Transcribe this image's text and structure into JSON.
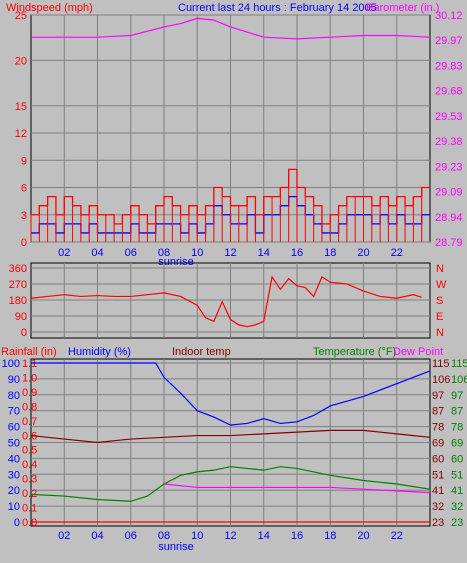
{
  "header": {
    "windspeed_label": "Windspeed (mph)",
    "period_label": "Current last 24 hours : February 14 2005",
    "barometer_label": "Barometer (in.)"
  },
  "colors": {
    "background": "#c0c0c0",
    "wind_red": "#ff0000",
    "wind_blue": "#0000ff",
    "barometer": "#ff00ff",
    "direction": "#ff0000",
    "humidity": "#0000ff",
    "indoor_temp": "#800000",
    "temperature": "#008000",
    "dew_point": "#ff00ff",
    "rainfall": "#ff0000"
  },
  "x_axis": {
    "ticks": [
      "02",
      "04",
      "06",
      "08",
      "10",
      "12",
      "14",
      "16",
      "18",
      "20",
      "22"
    ],
    "sunrise_label": "sunrise"
  },
  "chart_data": [
    {
      "type": "line",
      "panel": "wind_barometer",
      "x_range": [
        0,
        24
      ],
      "y_left": {
        "label": "Windspeed (mph)",
        "ylim": [
          0,
          25
        ],
        "ticks": [
          "0",
          "3",
          "6",
          "9",
          "12",
          "15",
          "20",
          "25"
        ]
      },
      "y_right": {
        "label": "Barometer (in.)",
        "ylim": [
          28.79,
          30.12
        ],
        "ticks": [
          "28.79",
          "28.94",
          "29.09",
          "29.23",
          "29.38",
          "29.53",
          "29.68",
          "29.83",
          "29.97",
          "30.12"
        ]
      },
      "series": [
        {
          "kind": "gust",
          "hours": [
            0,
            0.5,
            1,
            1.5,
            2,
            2.5,
            3,
            3.5,
            4,
            4.5,
            5,
            5.5,
            6,
            6.5,
            7,
            7.5,
            8,
            8.5,
            9,
            9.5,
            10,
            10.5,
            11,
            11.5,
            12,
            12.5,
            13,
            13.5,
            14,
            14.5,
            15,
            15.5,
            16,
            16.5,
            17,
            17.5,
            18,
            18.5,
            19,
            19.5,
            20,
            20.5,
            21,
            21.5,
            22,
            22.5,
            23,
            23.5
          ],
          "values": [
            3,
            4,
            5,
            3,
            5,
            4,
            3,
            4,
            3,
            3,
            2,
            3,
            4,
            3,
            2,
            4,
            5,
            4,
            3,
            4,
            3,
            4,
            6,
            5,
            4,
            4,
            5,
            3,
            5,
            5,
            6,
            8,
            6,
            5,
            4,
            2,
            3,
            4,
            5,
            5,
            5,
            4,
            5,
            4,
            5,
            4,
            5,
            6
          ]
        },
        {
          "kind": "average",
          "hours": [
            0,
            0.5,
            1,
            1.5,
            2,
            2.5,
            3,
            3.5,
            4,
            4.5,
            5,
            5.5,
            6,
            6.5,
            7,
            7.5,
            8,
            8.5,
            9,
            9.5,
            10,
            10.5,
            11,
            11.5,
            12,
            12.5,
            13,
            13.5,
            14,
            14.5,
            15,
            15.5,
            16,
            16.5,
            17,
            17.5,
            18,
            18.5,
            19,
            19.5,
            20,
            20.5,
            21,
            21.5,
            22,
            22.5,
            23,
            23.5
          ],
          "values": [
            1,
            2,
            2,
            1,
            2,
            2,
            1,
            2,
            1,
            1,
            1,
            1,
            2,
            1,
            1,
            2,
            2,
            2,
            1,
            2,
            1,
            2,
            4,
            3,
            2,
            2,
            3,
            1,
            3,
            3,
            4,
            5,
            4,
            3,
            2,
            1,
            1,
            2,
            3,
            3,
            3,
            2,
            3,
            2,
            3,
            2,
            2,
            3
          ]
        },
        {
          "kind": "barometer",
          "hours": [
            0,
            2,
            4,
            6,
            8,
            9,
            10,
            11,
            12,
            13,
            14,
            16,
            18,
            20,
            22,
            24
          ],
          "values": [
            29.99,
            29.99,
            29.99,
            30.0,
            30.05,
            30.07,
            30.1,
            30.09,
            30.05,
            30.02,
            29.99,
            29.98,
            29.99,
            30.0,
            30.0,
            29.99
          ]
        }
      ]
    },
    {
      "type": "line",
      "panel": "wind_direction",
      "x_range": [
        0,
        24
      ],
      "y_left": {
        "ylim": [
          0,
          360
        ],
        "ticks": [
          "0",
          "90",
          "180",
          "270",
          "360"
        ]
      },
      "y_right": {
        "ticks": [
          "N",
          "W",
          "S",
          "E",
          "N"
        ]
      },
      "series": [
        {
          "kind": "direction_degrees",
          "hours": [
            0,
            1,
            2,
            3,
            4,
            5,
            6,
            7,
            8,
            9,
            10,
            10.5,
            11,
            11.5,
            12,
            12.5,
            13,
            13.5,
            14,
            14.5,
            15,
            15.5,
            16,
            16.5,
            17,
            17.5,
            18,
            19,
            20,
            21,
            22,
            23,
            23.5
          ],
          "values": [
            190,
            200,
            210,
            200,
            205,
            200,
            200,
            210,
            220,
            200,
            150,
            80,
            60,
            170,
            70,
            40,
            30,
            40,
            60,
            310,
            240,
            300,
            260,
            250,
            200,
            310,
            280,
            270,
            230,
            200,
            190,
            210,
            195
          ]
        }
      ]
    },
    {
      "type": "line",
      "panel": "humidity_temperature",
      "x_range": [
        0,
        24
      ],
      "labels": {
        "rainfall": "Rainfall (in)",
        "humidity": "Humidity (%)",
        "indoor_temp": "Indoor temp",
        "temperature": "Temperature (°F)",
        "dew_point": "Dew Point"
      },
      "y_left_rain": {
        "ylim": [
          0,
          1.1
        ],
        "ticks": [
          "0.0",
          "0.1",
          "0.2",
          "0.3",
          "0.4",
          "0.5",
          "0.6",
          "0.7",
          "0.8",
          "0.9",
          "1.0",
          "1.1"
        ]
      },
      "y_left_humidity": {
        "ylim": [
          0,
          100
        ],
        "ticks": [
          "0",
          "10",
          "20",
          "30",
          "40",
          "50",
          "60",
          "70",
          "80",
          "90",
          "100"
        ]
      },
      "y_right_inner": {
        "ticks": [
          "23",
          "32",
          "41",
          "51",
          "60",
          "69",
          "78",
          "87",
          "97",
          "106",
          "115"
        ]
      },
      "y_right_outer": {
        "ticks": [
          "23",
          "32",
          "41",
          "51",
          "60",
          "69",
          "78",
          "87",
          "97",
          "106",
          "115"
        ]
      },
      "y_right_range": [
        23,
        115
      ],
      "series": [
        {
          "name": "Humidity (%)",
          "hours": [
            0,
            2,
            4,
            6,
            7,
            7.5,
            8,
            9,
            10,
            11,
            12,
            13,
            14,
            15,
            16,
            17,
            18,
            19,
            20,
            21,
            22,
            23,
            24
          ],
          "values": [
            100,
            100,
            100,
            100,
            100,
            100,
            91,
            81,
            70,
            66,
            61,
            62,
            65,
            62,
            63,
            67,
            73,
            76,
            79,
            83,
            87,
            91,
            95
          ]
        },
        {
          "name": "Indoor temp",
          "hours": [
            0,
            2,
            4,
            6,
            8,
            10,
            12,
            14,
            16,
            18,
            20,
            22,
            24
          ],
          "values": [
            73,
            71,
            69,
            71,
            72,
            73,
            73,
            74,
            75,
            76,
            76,
            74,
            72
          ]
        },
        {
          "name": "Temperature (°F)",
          "hours": [
            0,
            2,
            4,
            6,
            7,
            8,
            9,
            10,
            11,
            12,
            13,
            14,
            15,
            16,
            18,
            20,
            22,
            24
          ],
          "values": [
            39,
            38,
            36,
            35,
            38,
            45,
            50,
            52,
            53,
            55,
            54,
            53,
            55,
            54,
            50,
            47,
            45,
            42
          ]
        },
        {
          "name": "Dew Point",
          "hours": [
            0,
            7.5,
            8,
            10,
            12,
            14,
            16,
            18,
            20,
            22,
            24
          ],
          "values": [
            null,
            null,
            45,
            43,
            43,
            43,
            43,
            43,
            42,
            41,
            40
          ]
        },
        {
          "name": "Rainfall (in)",
          "hours": [
            0,
            24
          ],
          "values": [
            0.0,
            0.0
          ]
        }
      ]
    }
  ]
}
